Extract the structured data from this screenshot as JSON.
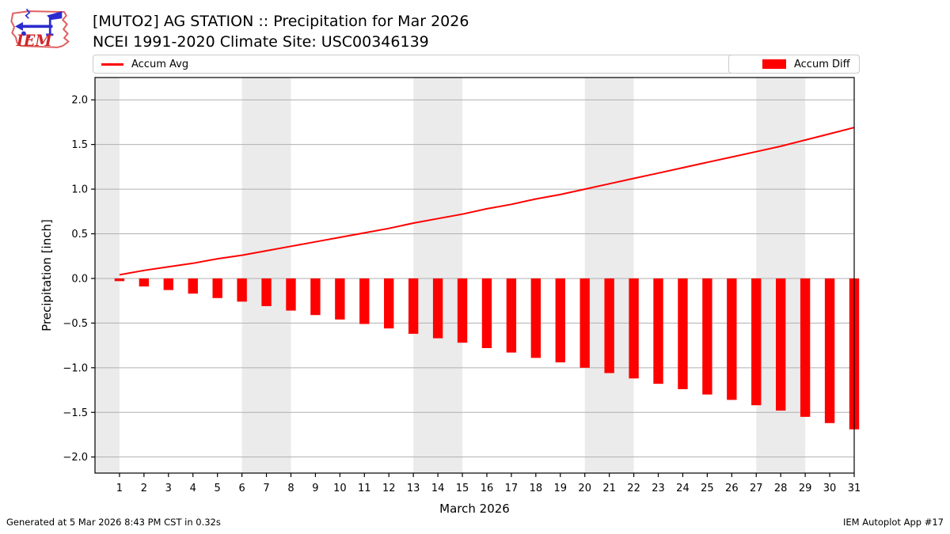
{
  "header": {
    "title": "[MUTO2] AG STATION :: Precipitation for Mar 2026",
    "subtitle": "NCEI 1991-2020 Climate Site: USC00346139"
  },
  "logo": {
    "text": "IEM"
  },
  "legend": {
    "avg_label": "Accum Avg",
    "diff_label": "Accum Diff"
  },
  "footer": {
    "left": "Generated at 5 Mar 2026 8:43 PM CST in 0.32s",
    "right": "IEM Autoplot App #17"
  },
  "colors": {
    "series_red": "#ff0000",
    "weekend_band": "#ebebeb",
    "gridline": "#b0b0b0",
    "axis_border": "#000000",
    "legend_border": "#cbcbcb"
  },
  "chart_data": {
    "type": "bar",
    "title": "[MUTO2] AG STATION :: Precipitation for Mar 2026",
    "subtitle": "NCEI 1991-2020 Climate Site: USC00346139",
    "xlabel": "March 2026",
    "ylabel": "Precipitation [inch]",
    "x": [
      1,
      2,
      3,
      4,
      5,
      6,
      7,
      8,
      9,
      10,
      11,
      12,
      13,
      14,
      15,
      16,
      17,
      18,
      19,
      20,
      21,
      22,
      23,
      24,
      25,
      26,
      27,
      28,
      29,
      30,
      31
    ],
    "series": [
      {
        "name": "Accum Avg",
        "type": "line",
        "color": "#ff0000",
        "values": [
          0.04,
          0.09,
          0.13,
          0.17,
          0.22,
          0.26,
          0.31,
          0.36,
          0.41,
          0.46,
          0.51,
          0.56,
          0.62,
          0.67,
          0.72,
          0.78,
          0.83,
          0.89,
          0.94,
          1.0,
          1.06,
          1.12,
          1.18,
          1.24,
          1.3,
          1.36,
          1.42,
          1.48,
          1.55,
          1.62,
          1.69
        ]
      },
      {
        "name": "Accum Diff",
        "type": "bar",
        "color": "#ff0000",
        "values": [
          -0.03,
          -0.09,
          -0.13,
          -0.17,
          -0.22,
          -0.26,
          -0.31,
          -0.36,
          -0.41,
          -0.46,
          -0.51,
          -0.56,
          -0.62,
          -0.67,
          -0.72,
          -0.78,
          -0.83,
          -0.89,
          -0.94,
          -1.0,
          -1.06,
          -1.12,
          -1.18,
          -1.24,
          -1.3,
          -1.36,
          -1.42,
          -1.48,
          -1.55,
          -1.62,
          -1.69
        ]
      }
    ],
    "xlim": [
      0.5,
      31.5
    ],
    "ylim": [
      -2.18,
      2.25
    ],
    "yticks": [
      2.0,
      1.5,
      1.0,
      0.5,
      0.0,
      -0.5,
      -1.0,
      -1.5,
      -2.0
    ],
    "ytick_labels": [
      "2.0",
      "1.5",
      "1.0",
      "0.5",
      "0.0",
      "−0.5",
      "−1.0",
      "−1.5",
      "−2.0"
    ],
    "xtick_labels": [
      "1",
      "2",
      "3",
      "4",
      "5",
      "6",
      "7",
      "8",
      "9",
      "10",
      "11",
      "12",
      "13",
      "14",
      "15",
      "16",
      "17",
      "18",
      "19",
      "20",
      "21",
      "22",
      "23",
      "24",
      "25",
      "26",
      "27",
      "28",
      "29",
      "30",
      "31"
    ],
    "weekend_bands": [
      [
        0.5,
        1.5
      ],
      [
        6.5,
        8.5
      ],
      [
        13.5,
        15.5
      ],
      [
        20.5,
        22.5
      ],
      [
        27.5,
        29.5
      ]
    ],
    "grid": true,
    "bar_width": 0.4,
    "legend_position": "top"
  }
}
